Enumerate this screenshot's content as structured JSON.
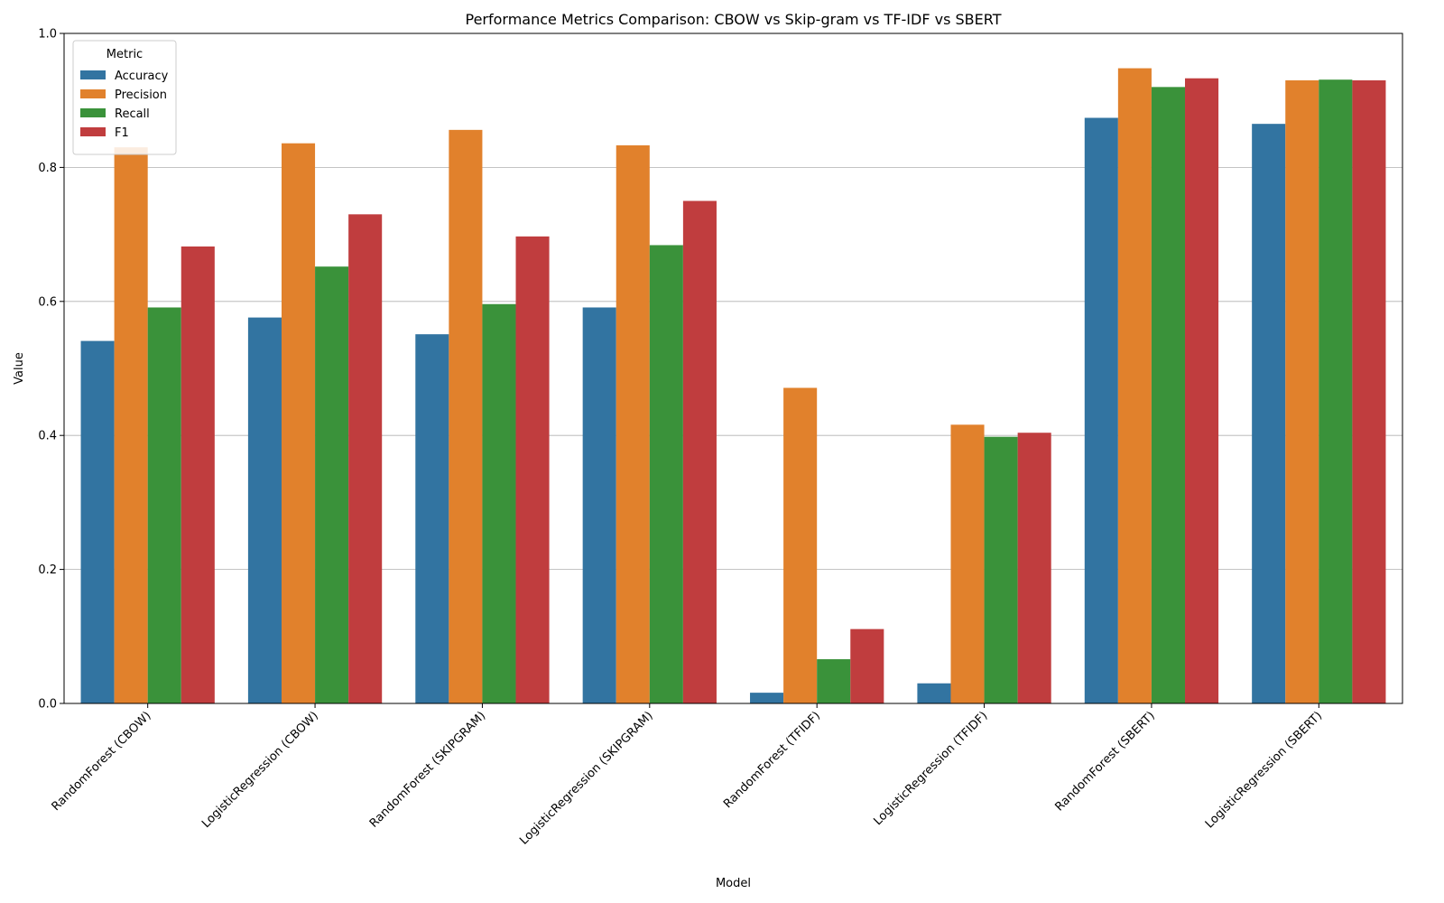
{
  "chart_data": {
    "type": "bar",
    "title": "Performance Metrics Comparison: CBOW vs Skip-gram vs TF-IDF vs SBERT",
    "xlabel": "Model",
    "ylabel": "Value",
    "ylim": [
      0,
      1.0
    ],
    "yticks": [
      0.0,
      0.2,
      0.4,
      0.6,
      0.8,
      1.0
    ],
    "ytick_labels": [
      "0.0",
      "0.2",
      "0.4",
      "0.6",
      "0.8",
      "1.0"
    ],
    "grid": "horizontal",
    "legend": {
      "title": "Metric",
      "placement": "top-left"
    },
    "categories": [
      "RandomForest (CBOW)",
      "LogisticRegression (CBOW)",
      "RandomForest (SKIPGRAM)",
      "LogisticRegression (SKIPGRAM)",
      "RandomForest (TFIDF)",
      "LogisticRegression (TFIDF)",
      "RandomForest (SBERT)",
      "LogisticRegression (SBERT)"
    ],
    "series": [
      {
        "name": "Accuracy",
        "color": "#3274a1",
        "values": [
          0.541,
          0.576,
          0.551,
          0.591,
          0.016,
          0.03,
          0.874,
          0.865
        ]
      },
      {
        "name": "Precision",
        "color": "#e1812c",
        "values": [
          0.83,
          0.836,
          0.856,
          0.833,
          0.471,
          0.416,
          0.948,
          0.93
        ]
      },
      {
        "name": "Recall",
        "color": "#3a923a",
        "values": [
          0.591,
          0.652,
          0.596,
          0.684,
          0.066,
          0.398,
          0.92,
          0.931
        ]
      },
      {
        "name": "F1",
        "color": "#c03d3e",
        "values": [
          0.682,
          0.73,
          0.697,
          0.75,
          0.111,
          0.404,
          0.933,
          0.93
        ]
      }
    ]
  }
}
